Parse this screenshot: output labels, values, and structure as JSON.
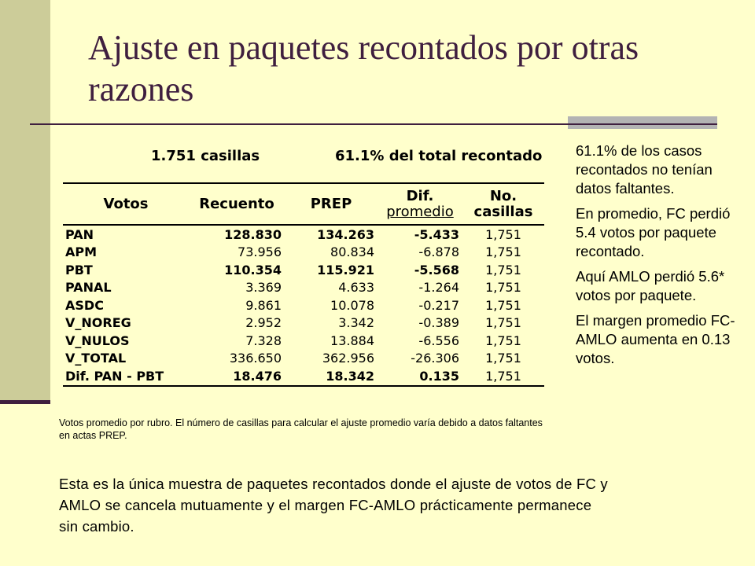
{
  "slide": {
    "title": "Ajuste en paquetes recontados por otras razones"
  },
  "table": {
    "summary_left": "1.751 casillas",
    "summary_right": "61.1% del total recontado",
    "headers": {
      "votos": "Votos",
      "recuento": "Recuento",
      "prep": "PREP",
      "dif_line1": "Dif.",
      "dif_line2": "promedio",
      "casillas": "No. casillas"
    },
    "rows": [
      {
        "rubro": "PAN",
        "recuento": "128.830",
        "prep": "134.263",
        "dif": "-5.433",
        "casillas": "1,751"
      },
      {
        "rubro": "APM",
        "recuento": "73.956",
        "prep": "80.834",
        "dif": "-6.878",
        "casillas": "1,751"
      },
      {
        "rubro": "PBT",
        "recuento": "110.354",
        "prep": "115.921",
        "dif": "-5.568",
        "casillas": "1,751"
      },
      {
        "rubro": "PANAL",
        "recuento": "3.369",
        "prep": "4.633",
        "dif": "-1.264",
        "casillas": "1,751"
      },
      {
        "rubro": "ASDC",
        "recuento": "9.861",
        "prep": "10.078",
        "dif": "-0.217",
        "casillas": "1,751"
      },
      {
        "rubro": "V_NOREG",
        "recuento": "2.952",
        "prep": "3.342",
        "dif": "-0.389",
        "casillas": "1,751"
      },
      {
        "rubro": "V_NULOS",
        "recuento": "7.328",
        "prep": "13.884",
        "dif": "-6.556",
        "casillas": "1,751"
      },
      {
        "rubro": "V_TOTAL",
        "recuento": "336.650",
        "prep": "362.956",
        "dif": "-26.306",
        "casillas": "1,751"
      },
      {
        "rubro": "Dif. PAN - PBT",
        "recuento": "18.476",
        "prep": "18.342",
        "dif": "0.135",
        "casillas": "1,751"
      }
    ],
    "note": "Votos promedio por rubro. El número de casillas para calcular el ajuste promedio varía debido a datos faltantes en actas PREP."
  },
  "side_notes": [
    "61.1% de los casos recontados no tenían datos faltantes.",
    "En promedio, FC perdió 5.4 votos por paquete recontado.",
    "Aquí AMLO perdió 5.6* votos por paquete.",
    "El margen promedio FC-AMLO aumenta en 0.13 votos."
  ],
  "conclusion": "Esta es la única muestra de paquetes recontados donde el ajuste de votos de FC y AMLO se cancela mutuamente y el margen FC-AMLO prácticamente permanece sin cambio."
}
